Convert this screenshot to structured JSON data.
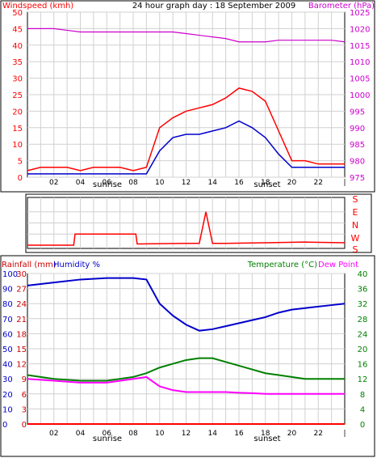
{
  "top_chart": {
    "title": "24 hour graph day : 18 September 2009",
    "left_axis_label": "Windspeed (kmh)",
    "right_axis_label": "Barometer (hPa)",
    "left_ticks": [
      "0",
      "5",
      "10",
      "15",
      "20",
      "25",
      "30",
      "35",
      "40",
      "45",
      "50"
    ],
    "right_ticks": [
      "975",
      "980",
      "985",
      "990",
      "995",
      "1000",
      "1005",
      "1010",
      "1015",
      "1020",
      "1025"
    ],
    "x_ticks": [
      "02",
      "04",
      "06",
      "08",
      "10",
      "12",
      "14",
      "16",
      "18",
      "20",
      "22"
    ],
    "sunrise_label": "sunrise",
    "sunset_label": "sunset",
    "colors": {
      "windspeed": "#ff0000",
      "average": "#0000cc",
      "barometer": "#cc00cc"
    }
  },
  "direction_chart": {
    "compass_letters": [
      "S",
      "E",
      "N",
      "W",
      "S"
    ],
    "x_ticks": [],
    "colors": {
      "direction": "#ff0000"
    }
  },
  "bottom_chart": {
    "left_axis_label_1": "Rainfall (mm)",
    "left_axis_label_2": "Humidity %",
    "right_axis_label_1": "Temperature (°C)",
    "right_axis_label_2": "Dew Point",
    "rain_ticks": [
      "0",
      "3",
      "6",
      "9",
      "12",
      "15",
      "18",
      "21",
      "24",
      "27",
      "30"
    ],
    "humidity_ticks": [
      "0",
      "10",
      "20",
      "30",
      "40",
      "50",
      "60",
      "70",
      "80",
      "90",
      "100"
    ],
    "temp_ticks": [
      "0",
      "4",
      "8",
      "12",
      "16",
      "20",
      "24",
      "28",
      "32",
      "36",
      "40"
    ],
    "x_ticks": [
      "02",
      "04",
      "06",
      "08",
      "10",
      "12",
      "14",
      "16",
      "18",
      "20",
      "22"
    ],
    "sunrise_label": "sunrise",
    "sunset_label": "sunset",
    "colors": {
      "rainfall": "#ff0000",
      "humidity": "#0000cc",
      "temperature": "#008000",
      "dewpoint": "#ff00ff",
      "rain_axis": "#cc0000",
      "humidity_axis": "#0000cc",
      "temp_axis": "#008000"
    }
  },
  "chart_data": [
    {
      "type": "line",
      "title": "24 hour graph day : 18 September 2009",
      "x": [
        0,
        1,
        2,
        3,
        4,
        5,
        6,
        7,
        8,
        9,
        10,
        11,
        12,
        13,
        14,
        15,
        16,
        17,
        18,
        19,
        20,
        21,
        22,
        23,
        24
      ],
      "xlim": [
        0,
        24
      ],
      "y_left_label": "Windspeed (kmh)",
      "y_left_lim": [
        0,
        50
      ],
      "y_right_label": "Barometer (hPa)",
      "y_right_lim": [
        975,
        1025
      ],
      "series": [
        {
          "axis": "left",
          "values": [
            2,
            3,
            3,
            3,
            2,
            3,
            3,
            3,
            2,
            3,
            15,
            18,
            20,
            21,
            22,
            24,
            27,
            26,
            23,
            14,
            5,
            5,
            4,
            4,
            4
          ]
        },
        {
          "axis": "left",
          "values": [
            1,
            1,
            1,
            1,
            1,
            1,
            1,
            1,
            1,
            1,
            8,
            12,
            13,
            13,
            14,
            15,
            17,
            15,
            12,
            7,
            3,
            3,
            3,
            3,
            3
          ]
        },
        {
          "axis": "right",
          "values": [
            1020,
            1020,
            1020,
            1019.5,
            1019,
            1019,
            1019,
            1019,
            1019,
            1019,
            1019,
            1019,
            1018.5,
            1018,
            1017.5,
            1017,
            1016,
            1016,
            1016,
            1016.5,
            1016.5,
            1016.5,
            1016.5,
            1016.5,
            1016
          ]
        }
      ]
    },
    {
      "type": "line",
      "x": [
        0,
        3.5,
        3.6,
        8.2,
        8.3,
        12,
        13,
        13.5,
        14,
        15,
        18,
        21,
        24
      ],
      "xlim": [
        0,
        24
      ],
      "y_ticks": [
        "S",
        "E",
        "N",
        "W",
        "S"
      ],
      "series": [
        {
          "values": [
            0,
            0,
            90,
            90,
            10,
            15,
            15,
            270,
            15,
            15,
            20,
            25,
            20
          ]
        }
      ]
    },
    {
      "type": "line",
      "x": [
        0,
        2,
        4,
        6,
        8,
        9,
        10,
        11,
        12,
        13,
        14,
        15,
        16,
        17,
        18,
        19,
        20,
        21,
        22,
        23,
        24
      ],
      "xlim": [
        0,
        24
      ],
      "y_left_label": "Rainfall (mm)",
      "y_left_lim": [
        0,
        30
      ],
      "y_left2_label": "Humidity %",
      "y_left2_lim": [
        0,
        100
      ],
      "y_right_label": "Temperature (°C)",
      "y_right_label_2": "Dew Point",
      "y_right_lim": [
        0,
        40
      ],
      "series": [
        {
          "axis": "left",
          "values": [
            0,
            0,
            0,
            0,
            0,
            0,
            0,
            0,
            0,
            0,
            0,
            0,
            0,
            0,
            0,
            0,
            0,
            0,
            0,
            0,
            0
          ]
        },
        {
          "axis": "left2",
          "values": [
            92,
            94,
            96,
            97,
            97,
            96,
            80,
            72,
            66,
            62,
            63,
            65,
            67,
            69,
            71,
            74,
            76,
            77,
            78,
            79,
            80
          ]
        },
        {
          "axis": "right",
          "values": [
            13,
            12,
            11.5,
            11.5,
            12.5,
            13.5,
            15,
            16,
            17,
            17.5,
            17.5,
            16.5,
            15.5,
            14.5,
            13.5,
            13,
            12.5,
            12,
            12,
            12,
            12
          ]
        },
        {
          "axis": "right",
          "values": [
            12,
            11.5,
            11,
            11,
            12,
            12.5,
            10,
            9,
            8.5,
            8.5,
            8.5,
            8.5,
            8.3,
            8.2,
            8,
            8,
            8,
            8,
            8,
            8,
            8
          ]
        }
      ]
    }
  ]
}
